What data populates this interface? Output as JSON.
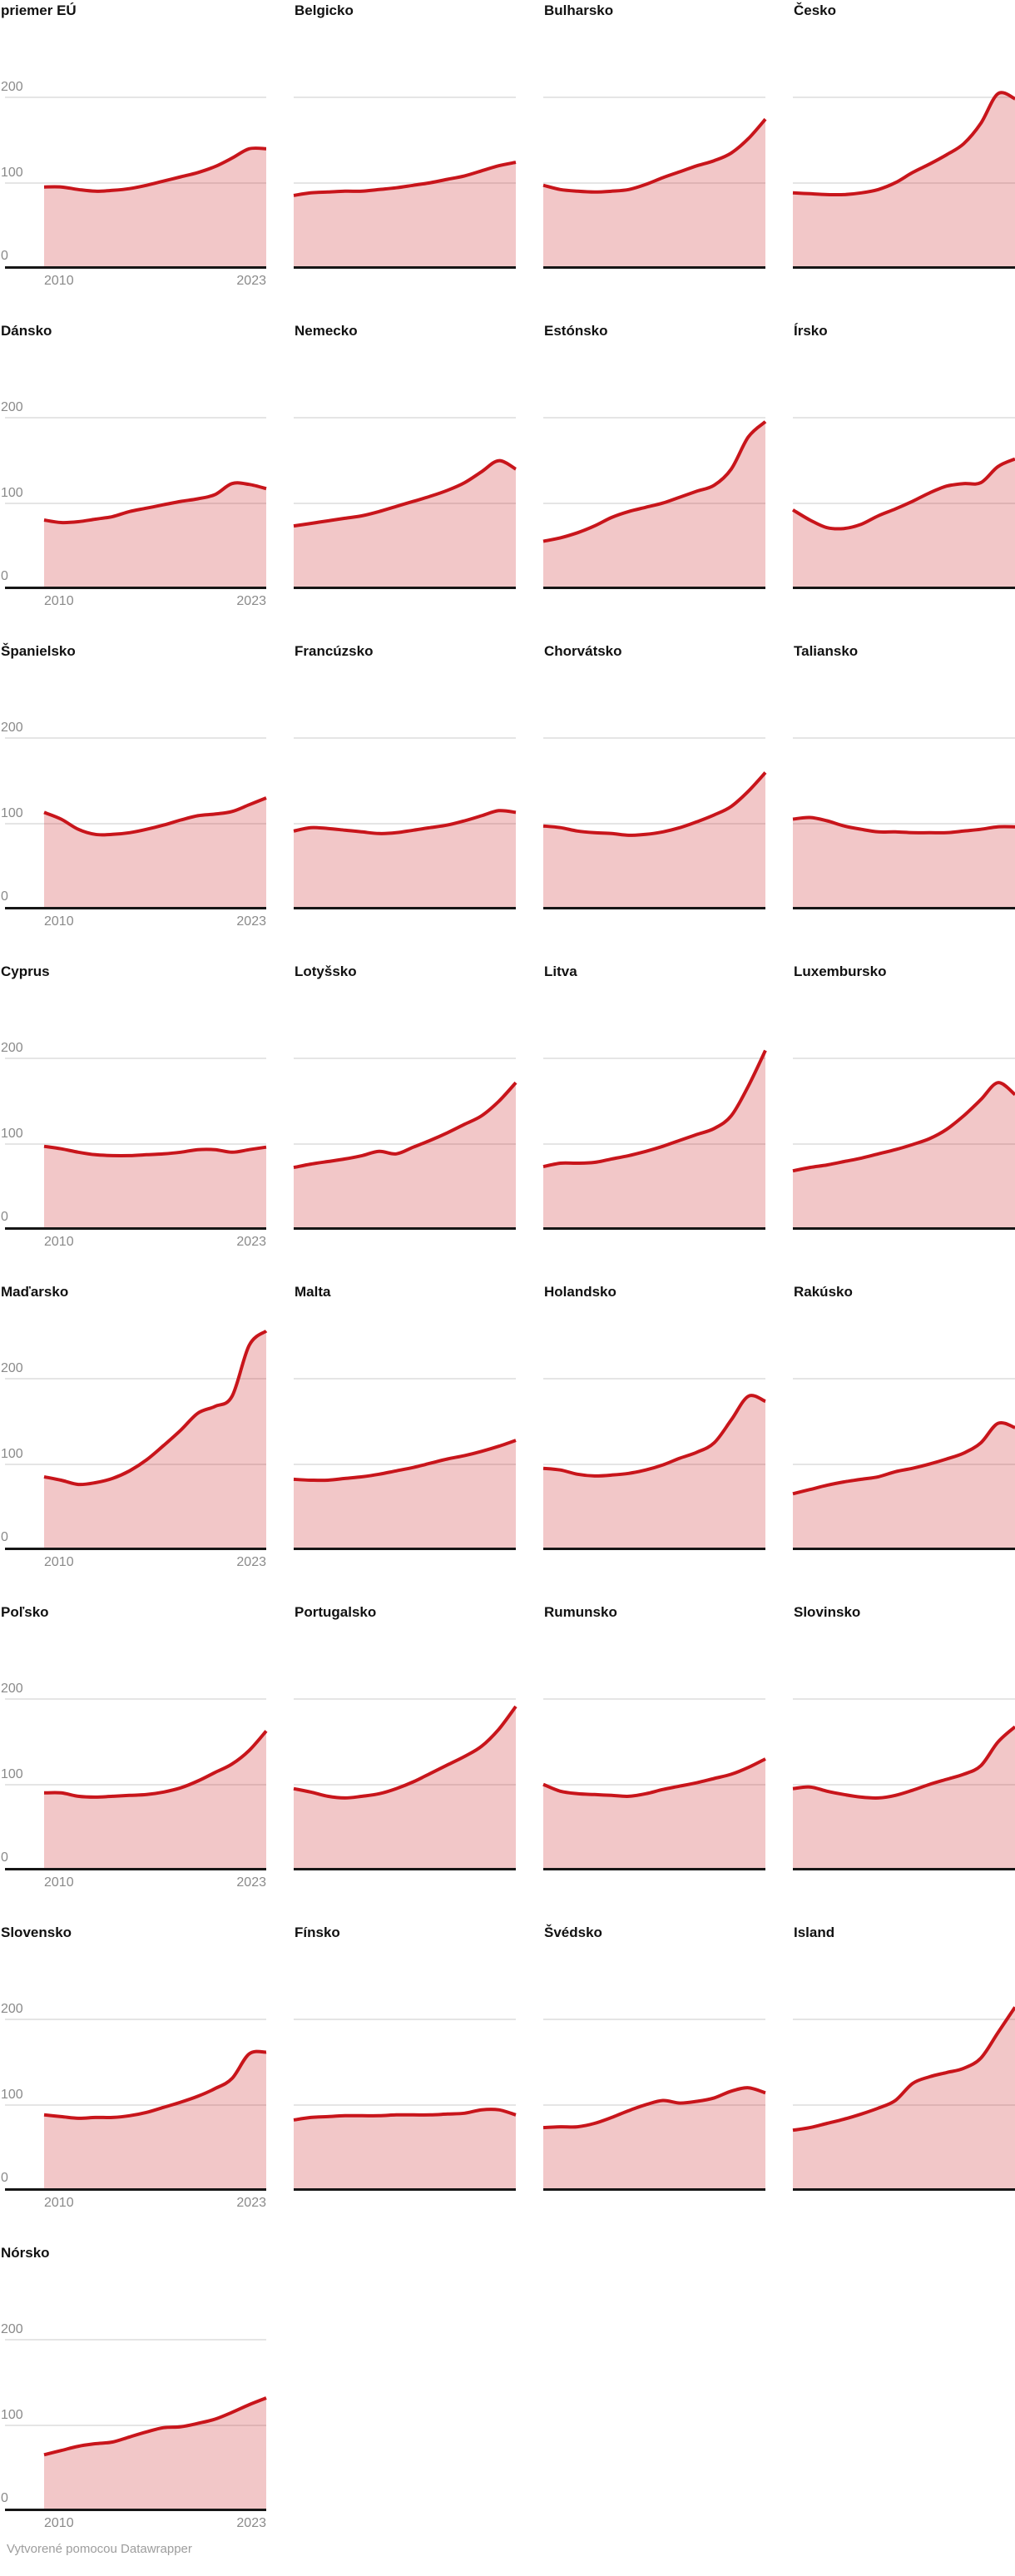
{
  "footer": "Vytvorené pomocou Datawrapper",
  "chart_data": {
    "type": "area",
    "layout": "small-multiples, 4 columns",
    "x": [
      2010,
      2011,
      2012,
      2013,
      2014,
      2015,
      2016,
      2017,
      2018,
      2019,
      2020,
      2021,
      2022,
      2023
    ],
    "x_tick_labels": [
      "2010",
      "2023"
    ],
    "y_ticks": [
      0,
      100,
      200
    ],
    "ylim": [
      0,
      260
    ],
    "grid": true,
    "line_color": "#c8151b",
    "fill_color": "rgba(200,21,24,0.24)",
    "axis_color": "#161616",
    "gridline_color": "#e5e5e5",
    "label_color": "#8a8a8a",
    "series": [
      {
        "name": "priemer EÚ",
        "values": [
          95,
          95,
          92,
          90,
          91,
          93,
          97,
          102,
          107,
          112,
          119,
          129,
          140,
          140
        ]
      },
      {
        "name": "Belgicko",
        "values": [
          85,
          88,
          89,
          90,
          90,
          92,
          94,
          97,
          100,
          104,
          108,
          114,
          120,
          124
        ]
      },
      {
        "name": "Bulharsko",
        "values": [
          97,
          92,
          90,
          89,
          90,
          92,
          98,
          106,
          113,
          120,
          126,
          135,
          152,
          175
        ]
      },
      {
        "name": "Česko",
        "values": [
          88,
          87,
          86,
          86,
          88,
          92,
          100,
          112,
          122,
          133,
          146,
          170,
          205,
          199
        ]
      },
      {
        "name": "Dánsko",
        "values": [
          80,
          77,
          78,
          81,
          84,
          90,
          94,
          98,
          102,
          105,
          110,
          123,
          122,
          117
        ]
      },
      {
        "name": "Nemecko",
        "values": [
          73,
          76,
          79,
          82,
          85,
          90,
          96,
          102,
          108,
          115,
          124,
          137,
          150,
          140
        ]
      },
      {
        "name": "Estónsko",
        "values": [
          55,
          59,
          65,
          73,
          83,
          90,
          95,
          100,
          107,
          114,
          121,
          140,
          178,
          196
        ]
      },
      {
        "name": "Írsko",
        "values": [
          92,
          80,
          71,
          70,
          75,
          85,
          93,
          102,
          112,
          120,
          123,
          124,
          143,
          152
        ]
      },
      {
        "name": "Španielsko",
        "values": [
          113,
          105,
          93,
          87,
          87,
          89,
          93,
          98,
          104,
          109,
          111,
          114,
          122,
          130
        ]
      },
      {
        "name": "Francúzsko",
        "values": [
          91,
          95,
          94,
          92,
          90,
          88,
          89,
          92,
          95,
          98,
          103,
          109,
          115,
          113
        ]
      },
      {
        "name": "Chorvátsko",
        "values": [
          97,
          95,
          91,
          89,
          88,
          86,
          87,
          90,
          95,
          102,
          110,
          120,
          138,
          160
        ]
      },
      {
        "name": "Taliansko",
        "values": [
          105,
          107,
          103,
          97,
          93,
          90,
          90,
          89,
          89,
          89,
          91,
          93,
          96,
          96
        ]
      },
      {
        "name": "Cyprus",
        "values": [
          97,
          94,
          90,
          87,
          86,
          86,
          87,
          88,
          90,
          93,
          93,
          90,
          93,
          96
        ]
      },
      {
        "name": "Lotyšsko",
        "values": [
          72,
          76,
          79,
          82,
          86,
          91,
          88,
          96,
          104,
          113,
          123,
          133,
          150,
          172
        ]
      },
      {
        "name": "Litva",
        "values": [
          73,
          77,
          77,
          78,
          82,
          86,
          91,
          97,
          104,
          111,
          118,
          133,
          168,
          210
        ]
      },
      {
        "name": "Luxembursko",
        "values": [
          68,
          72,
          75,
          79,
          83,
          88,
          93,
          99,
          106,
          117,
          133,
          152,
          172,
          158
        ]
      },
      {
        "name": "Maďarsko",
        "values": [
          85,
          81,
          76,
          78,
          83,
          92,
          105,
          122,
          140,
          160,
          168,
          180,
          240,
          257
        ]
      },
      {
        "name": "Malta",
        "values": [
          82,
          81,
          81,
          83,
          85,
          88,
          92,
          96,
          101,
          106,
          110,
          115,
          121,
          128
        ]
      },
      {
        "name": "Holandsko",
        "values": [
          95,
          93,
          88,
          86,
          87,
          89,
          93,
          99,
          107,
          114,
          125,
          152,
          180,
          174
        ]
      },
      {
        "name": "Rakúsko",
        "values": [
          65,
          70,
          75,
          79,
          82,
          85,
          91,
          95,
          100,
          106,
          113,
          125,
          148,
          143
        ]
      },
      {
        "name": "Poľsko",
        "values": [
          90,
          90,
          86,
          85,
          86,
          87,
          88,
          91,
          96,
          104,
          114,
          124,
          140,
          163
        ]
      },
      {
        "name": "Portugalsko",
        "values": [
          95,
          91,
          86,
          84,
          86,
          89,
          95,
          103,
          113,
          123,
          133,
          145,
          165,
          192
        ]
      },
      {
        "name": "Rumunsko",
        "values": [
          100,
          92,
          89,
          88,
          87,
          86,
          89,
          94,
          98,
          102,
          107,
          112,
          120,
          130
        ]
      },
      {
        "name": "Slovinsko",
        "values": [
          95,
          97,
          92,
          88,
          85,
          84,
          87,
          93,
          100,
          106,
          112,
          122,
          150,
          168
        ]
      },
      {
        "name": "Slovensko",
        "values": [
          88,
          86,
          84,
          85,
          85,
          87,
          91,
          97,
          103,
          110,
          119,
          131,
          160,
          162
        ]
      },
      {
        "name": "Fínsko",
        "values": [
          82,
          85,
          86,
          87,
          87,
          87,
          88,
          88,
          88,
          89,
          90,
          94,
          94,
          88
        ]
      },
      {
        "name": "Švédsko",
        "values": [
          73,
          74,
          74,
          78,
          85,
          93,
          100,
          105,
          102,
          104,
          108,
          116,
          120,
          114
        ]
      },
      {
        "name": "Island",
        "values": [
          70,
          73,
          78,
          83,
          89,
          96,
          105,
          125,
          133,
          138,
          143,
          155,
          185,
          215
        ]
      },
      {
        "name": "Nórsko",
        "values": [
          65,
          70,
          75,
          78,
          80,
          86,
          92,
          97,
          98,
          102,
          107,
          115,
          124,
          132
        ]
      }
    ]
  }
}
